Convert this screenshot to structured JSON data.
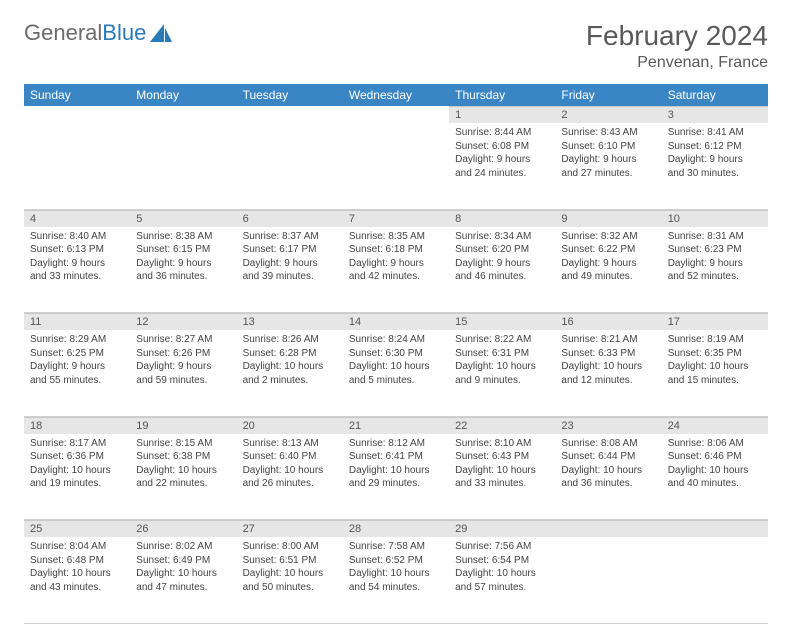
{
  "brand": {
    "part1": "General",
    "part2": "Blue"
  },
  "title": "February 2024",
  "location": "Penvenan, France",
  "colors": {
    "header_bg": "#3a85c4",
    "daynum_bg": "#e6e6e6",
    "text": "#444444",
    "title": "#5a5a5a"
  },
  "weekdays": [
    "Sunday",
    "Monday",
    "Tuesday",
    "Wednesday",
    "Thursday",
    "Friday",
    "Saturday"
  ],
  "weeks": [
    [
      null,
      null,
      null,
      null,
      {
        "n": "1",
        "sr": "Sunrise: 8:44 AM",
        "ss": "Sunset: 6:08 PM",
        "dl": "Daylight: 9 hours and 24 minutes."
      },
      {
        "n": "2",
        "sr": "Sunrise: 8:43 AM",
        "ss": "Sunset: 6:10 PM",
        "dl": "Daylight: 9 hours and 27 minutes."
      },
      {
        "n": "3",
        "sr": "Sunrise: 8:41 AM",
        "ss": "Sunset: 6:12 PM",
        "dl": "Daylight: 9 hours and 30 minutes."
      }
    ],
    [
      {
        "n": "4",
        "sr": "Sunrise: 8:40 AM",
        "ss": "Sunset: 6:13 PM",
        "dl": "Daylight: 9 hours and 33 minutes."
      },
      {
        "n": "5",
        "sr": "Sunrise: 8:38 AM",
        "ss": "Sunset: 6:15 PM",
        "dl": "Daylight: 9 hours and 36 minutes."
      },
      {
        "n": "6",
        "sr": "Sunrise: 8:37 AM",
        "ss": "Sunset: 6:17 PM",
        "dl": "Daylight: 9 hours and 39 minutes."
      },
      {
        "n": "7",
        "sr": "Sunrise: 8:35 AM",
        "ss": "Sunset: 6:18 PM",
        "dl": "Daylight: 9 hours and 42 minutes."
      },
      {
        "n": "8",
        "sr": "Sunrise: 8:34 AM",
        "ss": "Sunset: 6:20 PM",
        "dl": "Daylight: 9 hours and 46 minutes."
      },
      {
        "n": "9",
        "sr": "Sunrise: 8:32 AM",
        "ss": "Sunset: 6:22 PM",
        "dl": "Daylight: 9 hours and 49 minutes."
      },
      {
        "n": "10",
        "sr": "Sunrise: 8:31 AM",
        "ss": "Sunset: 6:23 PM",
        "dl": "Daylight: 9 hours and 52 minutes."
      }
    ],
    [
      {
        "n": "11",
        "sr": "Sunrise: 8:29 AM",
        "ss": "Sunset: 6:25 PM",
        "dl": "Daylight: 9 hours and 55 minutes."
      },
      {
        "n": "12",
        "sr": "Sunrise: 8:27 AM",
        "ss": "Sunset: 6:26 PM",
        "dl": "Daylight: 9 hours and 59 minutes."
      },
      {
        "n": "13",
        "sr": "Sunrise: 8:26 AM",
        "ss": "Sunset: 6:28 PM",
        "dl": "Daylight: 10 hours and 2 minutes."
      },
      {
        "n": "14",
        "sr": "Sunrise: 8:24 AM",
        "ss": "Sunset: 6:30 PM",
        "dl": "Daylight: 10 hours and 5 minutes."
      },
      {
        "n": "15",
        "sr": "Sunrise: 8:22 AM",
        "ss": "Sunset: 6:31 PM",
        "dl": "Daylight: 10 hours and 9 minutes."
      },
      {
        "n": "16",
        "sr": "Sunrise: 8:21 AM",
        "ss": "Sunset: 6:33 PM",
        "dl": "Daylight: 10 hours and 12 minutes."
      },
      {
        "n": "17",
        "sr": "Sunrise: 8:19 AM",
        "ss": "Sunset: 6:35 PM",
        "dl": "Daylight: 10 hours and 15 minutes."
      }
    ],
    [
      {
        "n": "18",
        "sr": "Sunrise: 8:17 AM",
        "ss": "Sunset: 6:36 PM",
        "dl": "Daylight: 10 hours and 19 minutes."
      },
      {
        "n": "19",
        "sr": "Sunrise: 8:15 AM",
        "ss": "Sunset: 6:38 PM",
        "dl": "Daylight: 10 hours and 22 minutes."
      },
      {
        "n": "20",
        "sr": "Sunrise: 8:13 AM",
        "ss": "Sunset: 6:40 PM",
        "dl": "Daylight: 10 hours and 26 minutes."
      },
      {
        "n": "21",
        "sr": "Sunrise: 8:12 AM",
        "ss": "Sunset: 6:41 PM",
        "dl": "Daylight: 10 hours and 29 minutes."
      },
      {
        "n": "22",
        "sr": "Sunrise: 8:10 AM",
        "ss": "Sunset: 6:43 PM",
        "dl": "Daylight: 10 hours and 33 minutes."
      },
      {
        "n": "23",
        "sr": "Sunrise: 8:08 AM",
        "ss": "Sunset: 6:44 PM",
        "dl": "Daylight: 10 hours and 36 minutes."
      },
      {
        "n": "24",
        "sr": "Sunrise: 8:06 AM",
        "ss": "Sunset: 6:46 PM",
        "dl": "Daylight: 10 hours and 40 minutes."
      }
    ],
    [
      {
        "n": "25",
        "sr": "Sunrise: 8:04 AM",
        "ss": "Sunset: 6:48 PM",
        "dl": "Daylight: 10 hours and 43 minutes."
      },
      {
        "n": "26",
        "sr": "Sunrise: 8:02 AM",
        "ss": "Sunset: 6:49 PM",
        "dl": "Daylight: 10 hours and 47 minutes."
      },
      {
        "n": "27",
        "sr": "Sunrise: 8:00 AM",
        "ss": "Sunset: 6:51 PM",
        "dl": "Daylight: 10 hours and 50 minutes."
      },
      {
        "n": "28",
        "sr": "Sunrise: 7:58 AM",
        "ss": "Sunset: 6:52 PM",
        "dl": "Daylight: 10 hours and 54 minutes."
      },
      {
        "n": "29",
        "sr": "Sunrise: 7:56 AM",
        "ss": "Sunset: 6:54 PM",
        "dl": "Daylight: 10 hours and 57 minutes."
      },
      null,
      null
    ]
  ]
}
